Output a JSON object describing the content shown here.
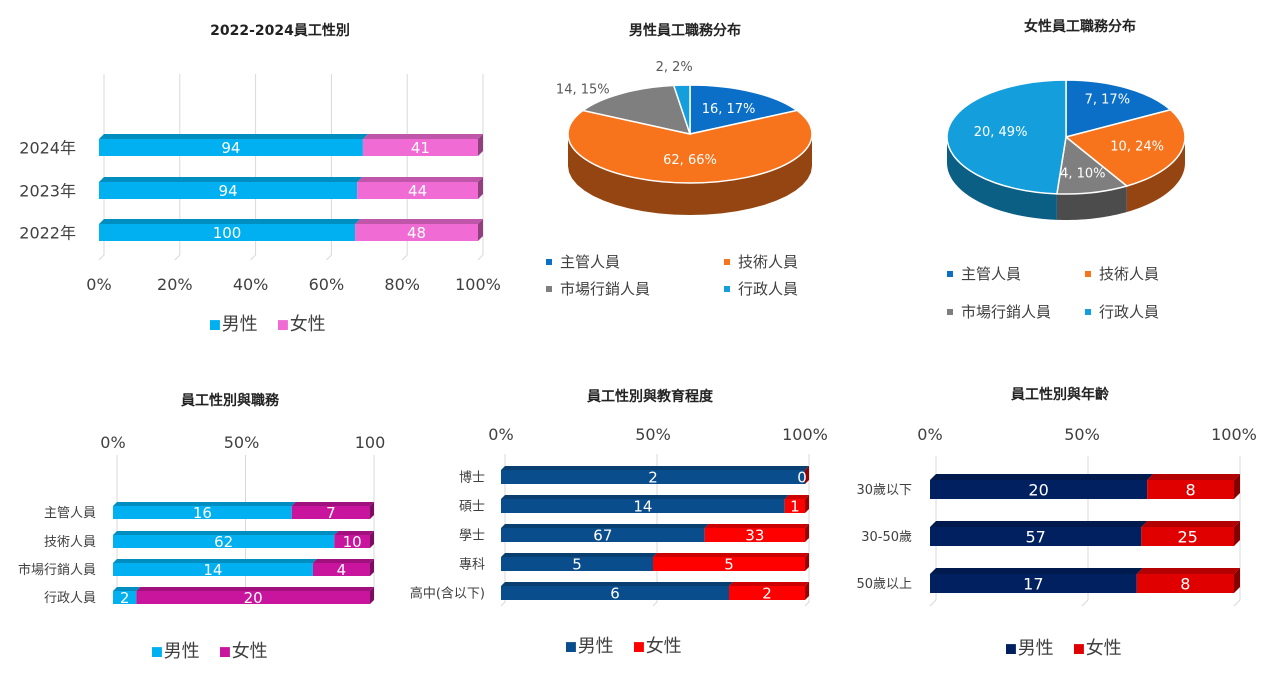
{
  "colors": {
    "male_light": "#00b0f0",
    "female_pink": "#f06bd3",
    "female_magenta": "#c9159e",
    "male_navy": "#0a4d8c",
    "female_red": "#ff0000",
    "male_dark": "#002060",
    "female_dark": "#e00000",
    "pie_blue": "#0b6fc7",
    "pie_orange": "#f7731c",
    "pie_gray": "#7f7f7f",
    "pie_cyan": "#149fdc",
    "grid": "#d9d9d9"
  },
  "chart_data": [
    {
      "id": "c1",
      "type": "bar",
      "stacked": "percent",
      "orientation": "horizontal",
      "title": "2022-2024員工性別",
      "categories": [
        "2024年",
        "2023年",
        "2022年"
      ],
      "series": [
        {
          "name": "男性",
          "values": [
            94,
            94,
            100
          ]
        },
        {
          "name": "女性",
          "values": [
            41,
            44,
            48
          ]
        }
      ],
      "xticks": [
        "0%",
        "20%",
        "40%",
        "60%",
        "80%",
        "100%"
      ],
      "grid": true,
      "legend": "bottom"
    },
    {
      "id": "c2",
      "type": "pie",
      "title": "男性員工職務分布",
      "labels": [
        "主管人員",
        "技術人員",
        "市場行銷人員",
        "行政人員"
      ],
      "values": [
        16,
        62,
        14,
        2
      ],
      "data_labels": [
        "16, 17%",
        "62, 66%",
        "14, 15%",
        "2, 2%"
      ],
      "legend": "bottom"
    },
    {
      "id": "c3",
      "type": "pie",
      "title": "女性員工職務分布",
      "labels": [
        "主管人員",
        "技術人員",
        "市場行銷人員",
        "行政人員"
      ],
      "values": [
        7,
        10,
        4,
        20
      ],
      "data_labels": [
        "7, 17%",
        "10, 24%",
        "4, 10%",
        "20, 49%"
      ],
      "legend": "bottom"
    },
    {
      "id": "c4",
      "type": "bar",
      "stacked": "percent",
      "orientation": "horizontal",
      "title": "員工性別與職務",
      "categories": [
        "主管人員",
        "技術人員",
        "市場行銷人員",
        "行政人員"
      ],
      "series": [
        {
          "name": "男性",
          "values": [
            16,
            62,
            14,
            2
          ]
        },
        {
          "name": "女性",
          "values": [
            7,
            10,
            4,
            20
          ]
        }
      ],
      "xticks": [
        "0%",
        "50%",
        "100"
      ],
      "grid": true,
      "legend": "bottom"
    },
    {
      "id": "c5",
      "type": "bar",
      "stacked": "percent",
      "orientation": "horizontal",
      "title": "員工性別與教育程度",
      "categories": [
        "博士",
        "碩士",
        "學士",
        "專科",
        "高中(含以下)"
      ],
      "series": [
        {
          "name": "男性",
          "values": [
            2,
            14,
            67,
            5,
            6
          ]
        },
        {
          "name": "女性",
          "values": [
            0,
            1,
            33,
            5,
            2
          ]
        }
      ],
      "xticks": [
        "0%",
        "50%",
        "100%"
      ],
      "grid": true,
      "legend": "bottom"
    },
    {
      "id": "c6",
      "type": "bar",
      "stacked": "percent",
      "orientation": "horizontal",
      "title": "員工性別與年齡",
      "categories": [
        "30歲以下",
        "30-50歲",
        "50歲以上"
      ],
      "series": [
        {
          "name": "男性",
          "values": [
            20,
            57,
            17
          ]
        },
        {
          "name": "女性",
          "values": [
            8,
            25,
            8
          ]
        }
      ],
      "xticks": [
        "0%",
        "50%",
        "100%"
      ],
      "grid": true,
      "legend": "bottom"
    }
  ]
}
